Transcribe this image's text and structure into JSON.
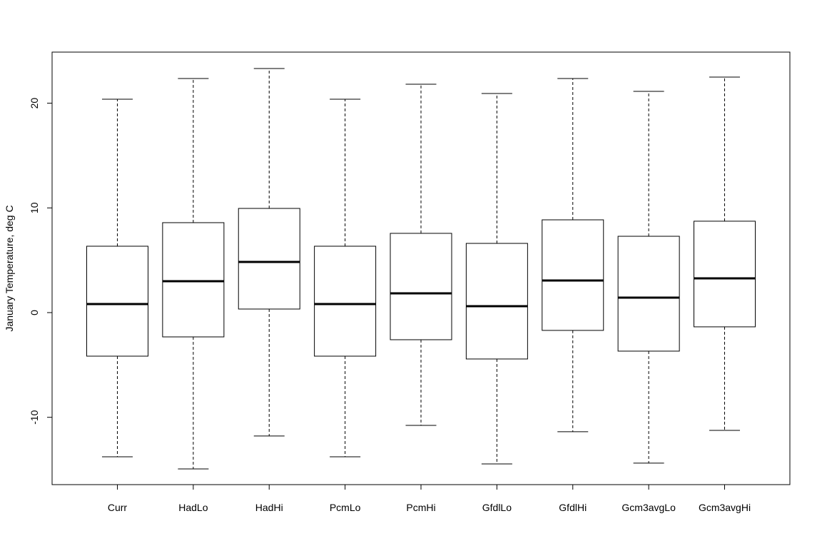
{
  "chart_data": {
    "type": "boxplot",
    "y_label": "January Temperature, deg C",
    "categories": [
      "Curr",
      "HadLo",
      "HadHi",
      "PcmLo",
      "PcmHi",
      "GfdlLo",
      "GfdlHi",
      "Gcm3avgLo",
      "Gcm3avgHi"
    ],
    "min": [
      -13.77,
      -14.93,
      -11.79,
      -13.77,
      -10.77,
      -14.45,
      -11.38,
      -14.38,
      -11.25
    ],
    "q1": [
      -4.16,
      -2.32,
      0.34,
      -4.16,
      -2.59,
      -4.43,
      -1.7,
      -3.68,
      -1.36
    ],
    "median": [
      0.82,
      3.0,
      4.84,
      0.82,
      1.84,
      0.61,
      3.07,
      1.43,
      3.27
    ],
    "q3": [
      6.34,
      8.59,
      9.95,
      6.34,
      7.57,
      6.61,
      8.86,
      7.29,
      8.73
    ],
    "max": [
      20.38,
      22.36,
      23.31,
      20.38,
      21.81,
      20.93,
      22.36,
      21.13,
      22.49
    ],
    "color": "#000000",
    "ylim": [
      -16.43,
      24.88
    ],
    "yticks": [
      -10,
      0,
      10,
      20
    ],
    "grid": false
  }
}
